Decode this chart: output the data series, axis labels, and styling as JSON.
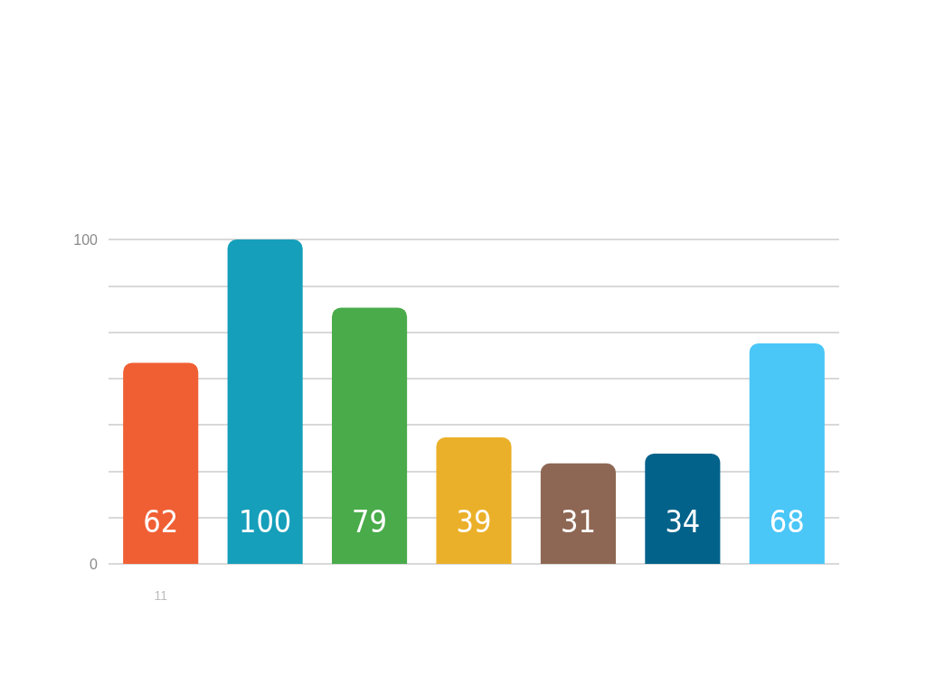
{
  "chart_data": {
    "type": "bar",
    "categories": [
      "11",
      null,
      null,
      null,
      null,
      null,
      null
    ],
    "values": [
      62,
      100,
      79,
      39,
      31,
      34,
      68
    ],
    "colors": [
      "#f05f33",
      "#159fba",
      "#49ab4a",
      "#ebb029",
      "#8d6753",
      "#02628a",
      "#4ac6f7"
    ],
    "data_labels": true,
    "ylim": [
      0,
      100
    ],
    "yticks": [
      0,
      {
        "value": 14.3,
        "label": null
      },
      {
        "value": 28.6,
        "label": null
      },
      {
        "value": 42.9,
        "label": null
      },
      {
        "value": 57.1,
        "label": null
      },
      {
        "value": 71.4,
        "label": null
      },
      {
        "value": 85.7,
        "label": null
      },
      100
    ],
    "grid": "y"
  }
}
